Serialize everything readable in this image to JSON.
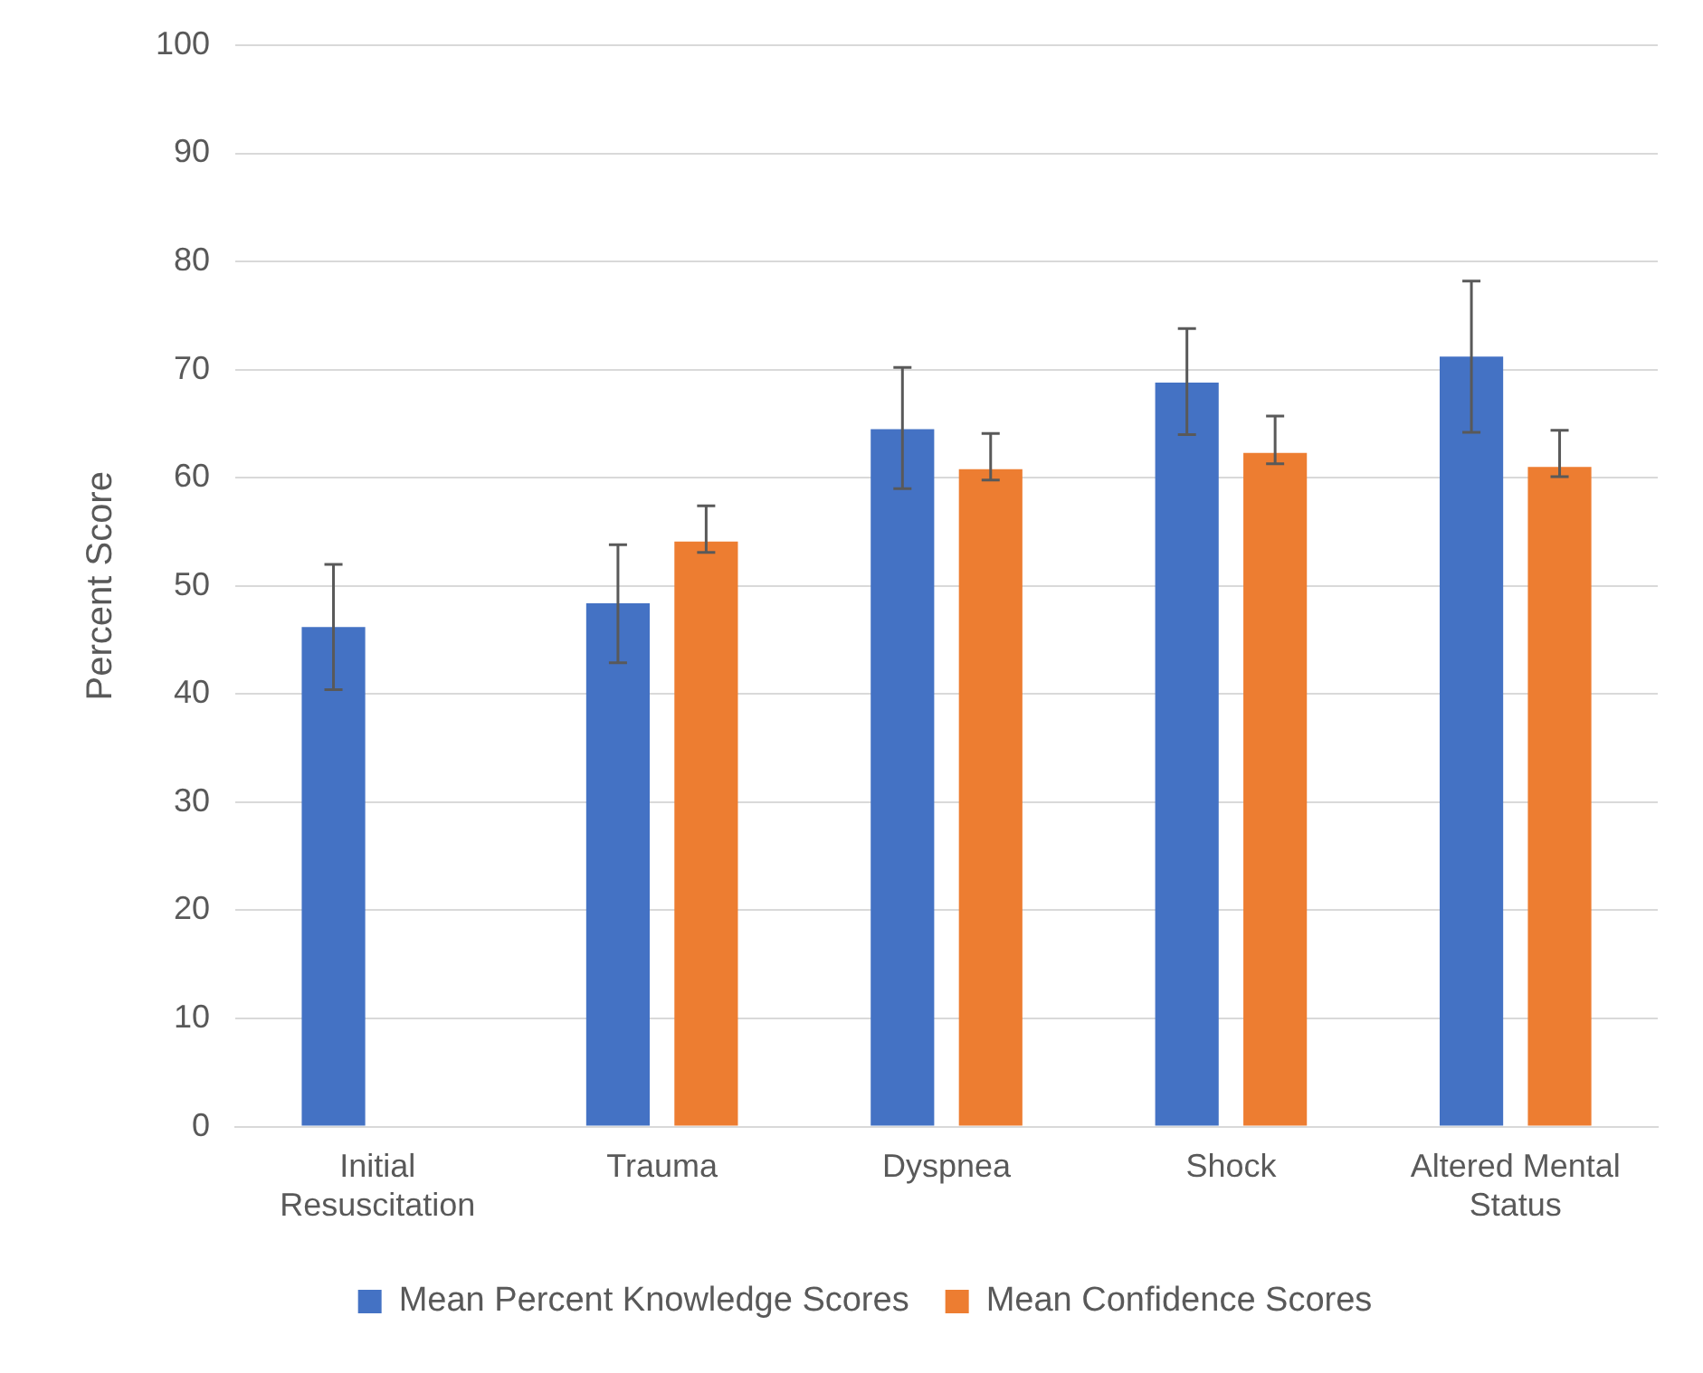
{
  "chart_data": {
    "type": "bar",
    "ylabel": "Percent Score",
    "categories": [
      "Initial Resuscitation",
      "Trauma",
      "Dyspnea",
      "Shock",
      "Altered Mental Status"
    ],
    "series": [
      {
        "name": "Mean Percent Knowledge Scores",
        "color": "#4472c4",
        "values": [
          46.2,
          48.4,
          64.5,
          68.8,
          71.2
        ],
        "errors": [
          [
            40.4,
            52.0
          ],
          [
            42.9,
            53.8
          ],
          [
            59.0,
            70.2
          ],
          [
            64.0,
            73.8
          ],
          [
            64.2,
            78.2
          ]
        ]
      },
      {
        "name": "Mean Confidence Scores",
        "color": "#ed7d31",
        "values": [
          null,
          54.1,
          60.8,
          62.3,
          61.0
        ],
        "errors": [
          null,
          [
            53.1,
            57.4
          ],
          [
            59.8,
            64.1
          ],
          [
            61.3,
            65.7
          ],
          [
            60.1,
            64.4
          ]
        ]
      }
    ],
    "ylim": [
      0,
      100
    ],
    "yticks": [
      0,
      10,
      20,
      30,
      40,
      50,
      60,
      70,
      80,
      90,
      100
    ],
    "grid": "y",
    "legend": "bottom"
  }
}
